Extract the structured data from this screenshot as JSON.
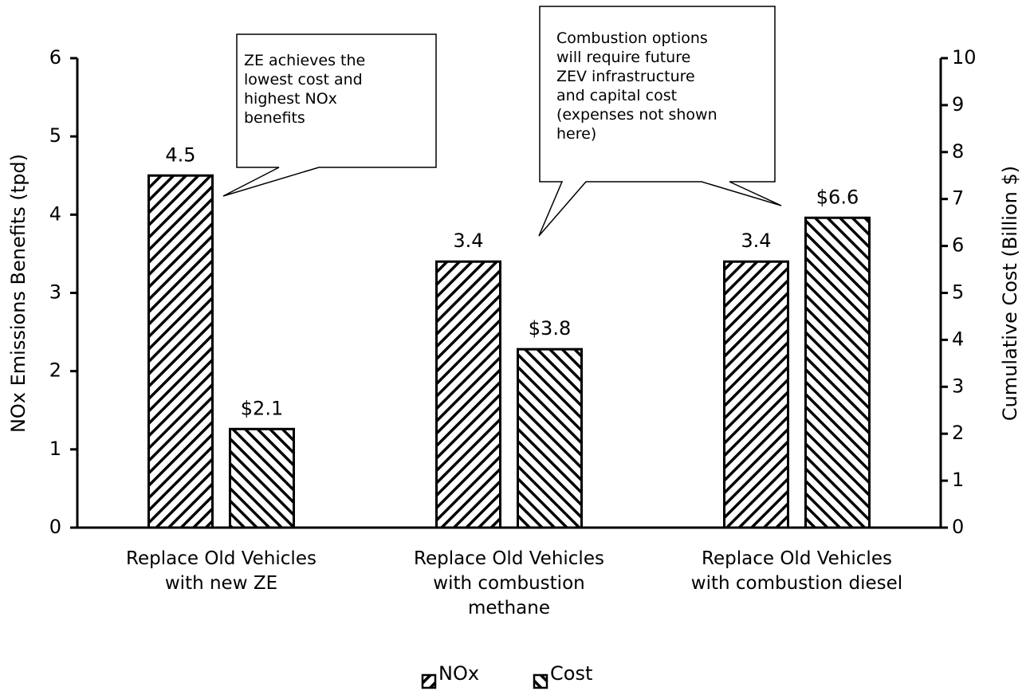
{
  "chart_data": {
    "type": "bar",
    "categories": [
      "Replace Old Vehicles\nwith new ZE",
      "Replace Old Vehicles\nwith combustion\nmethane",
      "Replace Old Vehicles\nwith combustion diesel"
    ],
    "series": [
      {
        "name": "NOx",
        "color": "#000000",
        "hatch": "/",
        "values": [
          4.5,
          3.4,
          3.4
        ]
      },
      {
        "name": "Cost",
        "color": "#000000",
        "hatch": "\\",
        "axis": "y2",
        "values": [
          2.1,
          3.8,
          6.6
        ],
        "value_labels": [
          "$2.1",
          "$3.8",
          "$6.6"
        ]
      }
    ],
    "ylabel": "NOx Emissions Benefits (tpd)",
    "y2label": "Cumulative Cost (Billion $)",
    "ylim": [
      0,
      6
    ],
    "yticks": [
      0,
      1,
      2,
      3,
      4,
      5,
      6
    ],
    "y2lim": [
      0,
      10
    ],
    "y2ticks": [
      0,
      1,
      2,
      3,
      4,
      5,
      6,
      7,
      8,
      9,
      10
    ],
    "legend": "bottom",
    "annotations": [
      "ZE achieves the\nlowest cost and\nhighest NOx\nbenefits",
      "Combustion options\nwill require future\nZEV infrastructure\nand capital cost\n(expenses not shown\nhere)"
    ]
  }
}
